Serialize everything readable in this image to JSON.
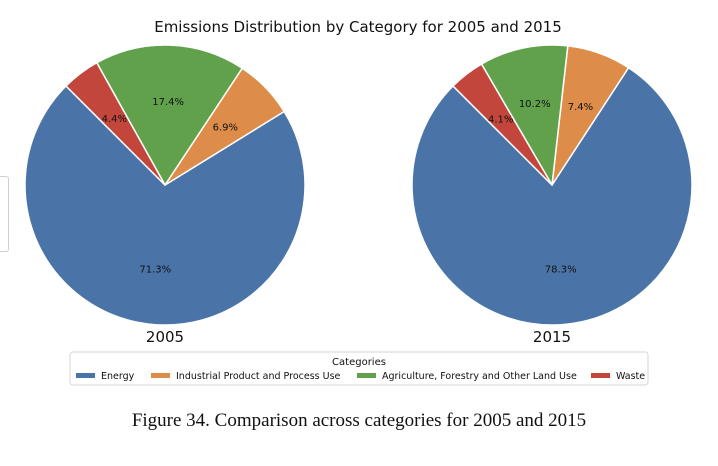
{
  "figure": {
    "caption": "Figure 34.  Comparison across categories for 2005 and 2015",
    "colors": {
      "energy": "#4a74a8",
      "industrial": "#dd8c49",
      "agriculture": "#62a14c",
      "waste": "#c2463c"
    }
  },
  "chart_data": {
    "type": "pie",
    "title": "Emissions Distribution by Category for 2005 and 2015",
    "legend": {
      "title": "Categories",
      "placement": "bottom-center",
      "entries": [
        "Energy",
        "Industrial Product and Process Use",
        "Agriculture, Forestry and Other Land Use",
        "Waste"
      ]
    },
    "start_angle_deg": 135,
    "counterclockwise": true,
    "pies": [
      {
        "label": "2005",
        "slices": [
          {
            "category": "Energy",
            "value": 71.3,
            "label": "71.3%"
          },
          {
            "category": "Industrial Product and Process Use",
            "value": 6.9,
            "label": "6.9%"
          },
          {
            "category": "Agriculture, Forestry and Other Land Use",
            "value": 17.4,
            "label": "17.4%"
          },
          {
            "category": "Waste",
            "value": 4.4,
            "label": "4.4%"
          }
        ]
      },
      {
        "label": "2015",
        "slices": [
          {
            "category": "Energy",
            "value": 78.3,
            "label": "78.3%"
          },
          {
            "category": "Industrial Product and Process Use",
            "value": 7.4,
            "label": "7.4%"
          },
          {
            "category": "Agriculture, Forestry and Other Land Use",
            "value": 10.2,
            "label": "10.2%"
          },
          {
            "category": "Waste",
            "value": 4.1,
            "label": "4.1%"
          }
        ]
      }
    ]
  }
}
